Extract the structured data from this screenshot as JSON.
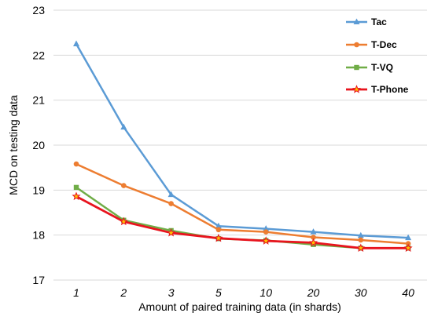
{
  "chart_data": {
    "type": "line",
    "categories": [
      "1",
      "2",
      "3",
      "5",
      "10",
      "20",
      "30",
      "40"
    ],
    "series": [
      {
        "name": "Tac",
        "color": "#5B9BD5",
        "marker": "triangle",
        "values": [
          22.25,
          20.4,
          18.9,
          18.2,
          18.14,
          18.07,
          17.99,
          17.94
        ]
      },
      {
        "name": "T-Dec",
        "color": "#ED7D31",
        "marker": "circle",
        "values": [
          19.58,
          19.1,
          18.7,
          18.12,
          18.07,
          17.95,
          17.89,
          17.81
        ]
      },
      {
        "name": "T-VQ",
        "color": "#70AD47",
        "marker": "square",
        "values": [
          19.06,
          18.33,
          18.1,
          17.92,
          17.88,
          17.79,
          17.71,
          17.71
        ]
      },
      {
        "name": "T-Phone",
        "color": "#E8141E",
        "marker": "star",
        "values": [
          18.86,
          18.3,
          18.05,
          17.93,
          17.87,
          17.83,
          17.71,
          17.71
        ]
      }
    ],
    "y_ticks": [
      "17",
      "18",
      "19",
      "20",
      "21",
      "22",
      "23"
    ],
    "xlabel": "Amount of paired training data (in shards)",
    "ylabel": "MCD on testing data",
    "ylim": [
      17,
      23
    ],
    "grid": "horizontal",
    "legend_position": "top-right"
  }
}
